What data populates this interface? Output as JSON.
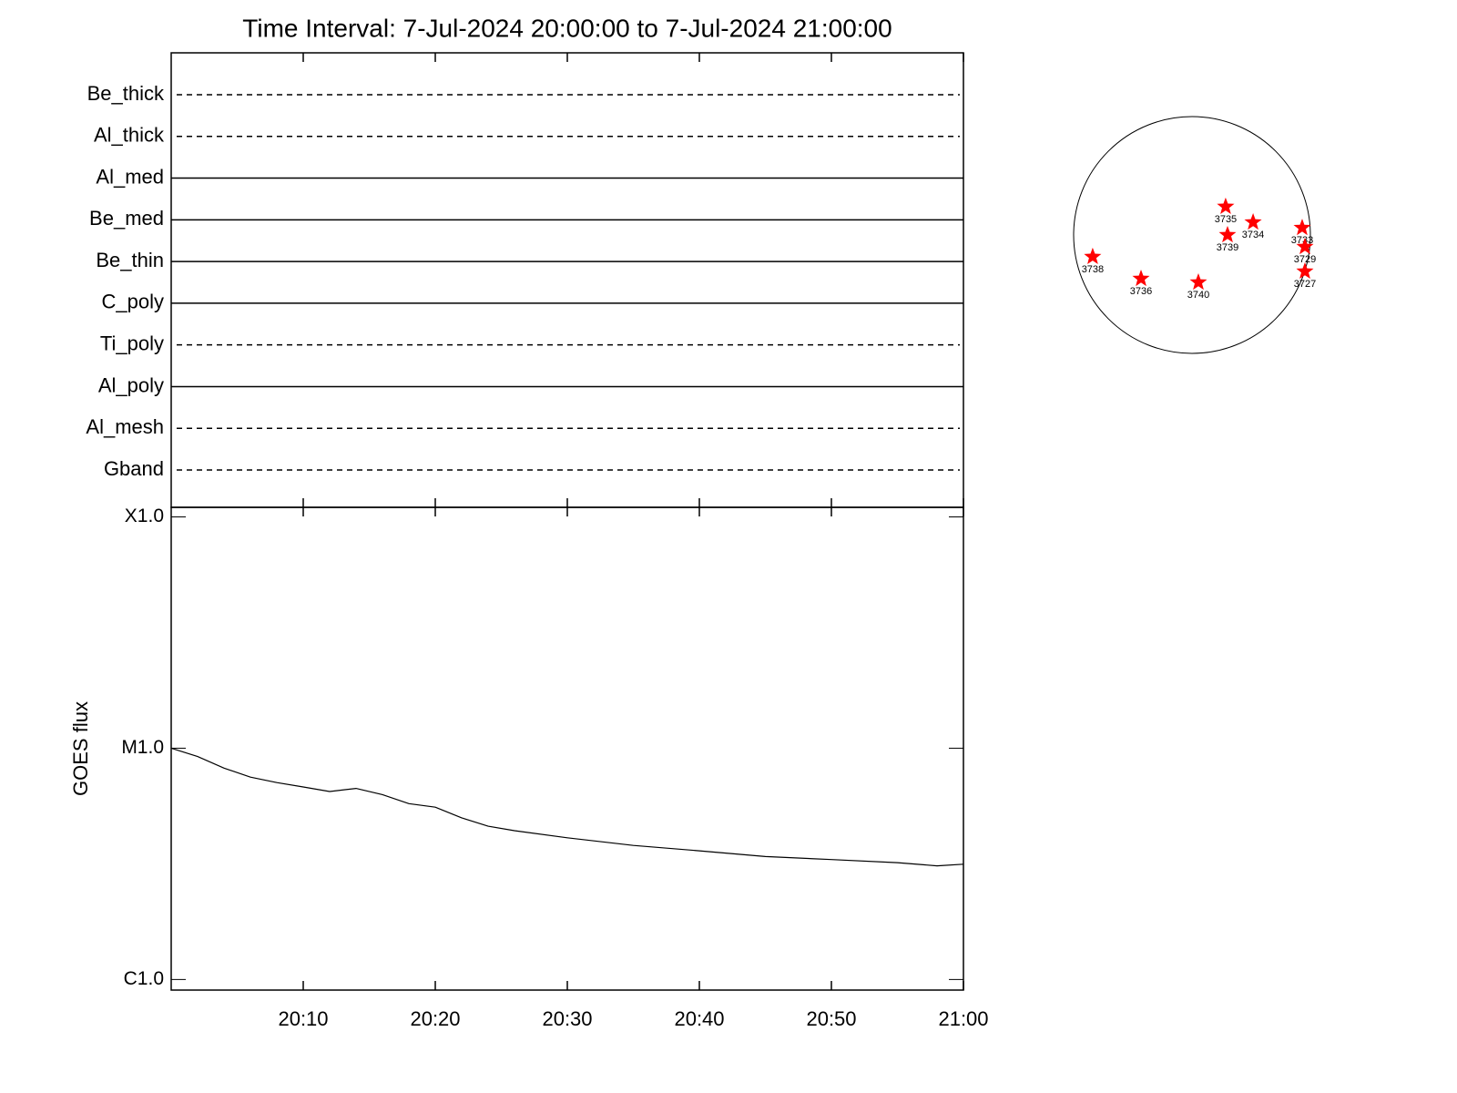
{
  "chart_data": [
    {
      "type": "filters",
      "title": "Time Interval:  7-Jul-2024 20:00:00 to  7-Jul-2024 21:00:00",
      "series": [
        {
          "name": "Be_thick",
          "style": "dashed"
        },
        {
          "name": "Al_thick",
          "style": "dashed"
        },
        {
          "name": "Al_med",
          "style": "solid"
        },
        {
          "name": "Be_med",
          "style": "solid"
        },
        {
          "name": "Be_thin",
          "style": "solid"
        },
        {
          "name": "C_poly",
          "style": "solid"
        },
        {
          "name": "Ti_poly",
          "style": "dashed"
        },
        {
          "name": "Al_poly",
          "style": "solid"
        },
        {
          "name": "Al_mesh",
          "style": "dashed"
        },
        {
          "name": "Gband",
          "style": "dashed"
        }
      ]
    },
    {
      "type": "line",
      "ylabel": "GOES flux",
      "x": [
        "20:00",
        "20:02",
        "20:04",
        "20:06",
        "20:08",
        "20:10",
        "20:12",
        "20:14",
        "20:16",
        "20:18",
        "20:20",
        "20:22",
        "20:24",
        "20:26",
        "20:30",
        "20:35",
        "20:40",
        "20:45",
        "20:50",
        "20:55",
        "20:58",
        "21:00"
      ],
      "values": [
        1e-05,
        9.2e-06,
        8.2e-06,
        7.5e-06,
        7.1e-06,
        6.8e-06,
        6.5e-06,
        6.7e-06,
        6.3e-06,
        5.76e-06,
        5.56e-06,
        5e-06,
        4.6e-06,
        4.4e-06,
        4.1e-06,
        3.8e-06,
        3.6e-06,
        3.4e-06,
        3.3e-06,
        3.2e-06,
        3.1e-06,
        3.15e-06
      ],
      "color": "#000000",
      "log_scale": true,
      "xlim": [
        "20:00",
        "21:00"
      ],
      "xticks": [
        "20:10",
        "20:20",
        "20:30",
        "20:40",
        "20:50",
        "21:00"
      ],
      "ylim": [
        9e-07,
        0.00011
      ],
      "yticks": [
        {
          "value": 1e-06,
          "label": "C1.0"
        },
        {
          "value": 1e-05,
          "label": "M1.0"
        },
        {
          "value": 0.0001,
          "label": "X1.0"
        }
      ]
    },
    {
      "type": "disk",
      "radius": 950,
      "color": "#ff0000",
      "labels": [
        "3735",
        "3734",
        "3733",
        "3739",
        "3729",
        "3738",
        "3727",
        "3736",
        "3740"
      ],
      "x": [
        270,
        490,
        884,
        285,
        906,
        -797,
        906,
        -409,
        51
      ],
      "values": [
        227,
        102,
        58,
        0,
        -95,
        -175,
        -292,
        -351,
        -380
      ]
    }
  ]
}
